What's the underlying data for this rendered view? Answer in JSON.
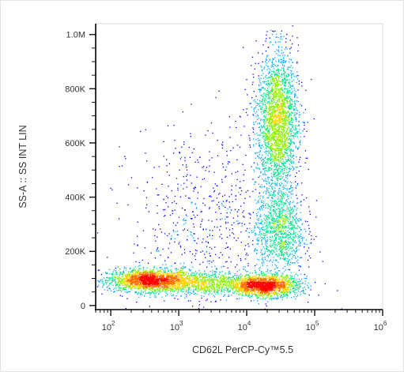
{
  "chart_data": {
    "type": "scatter",
    "style": "flow-cytometry density dot plot",
    "xlabel": "CD62L PerCP-Cy™5.5",
    "ylabel": "SS-A :: SS INT LIN",
    "x_scale": "log",
    "y_scale": "linear",
    "xlim": [
      60,
      1000000
    ],
    "ylim": [
      -15000,
      1040000
    ],
    "x_ticks": [
      {
        "value": 100,
        "base": "10",
        "exp": "2"
      },
      {
        "value": 1000,
        "base": "10",
        "exp": "3"
      },
      {
        "value": 10000,
        "base": "10",
        "exp": "4"
      },
      {
        "value": 100000,
        "base": "10",
        "exp": "5"
      },
      {
        "value": 1000000,
        "base": "10",
        "exp": "6"
      }
    ],
    "y_ticks": [
      {
        "value": 0,
        "label": "0"
      },
      {
        "value": 200000,
        "label": "200K"
      },
      {
        "value": 400000,
        "label": "400K"
      },
      {
        "value": 600000,
        "label": "600K"
      },
      {
        "value": 800000,
        "label": "800K"
      },
      {
        "value": 1000000,
        "label": "1.0M"
      }
    ],
    "grid": false,
    "legend": "none",
    "populations": [
      {
        "center_x": 350,
        "center_y": 95000,
        "spread_log10_x": 0.3,
        "spread_y": 20000,
        "weight": 0.2
      },
      {
        "center_x": 1800,
        "center_y": 85000,
        "spread_log10_x": 0.45,
        "spread_y": 22000,
        "weight": 0.13
      },
      {
        "center_x": 18000,
        "center_y": 75000,
        "spread_log10_x": 0.25,
        "spread_y": 20000,
        "weight": 0.2
      },
      {
        "center_x": 28000,
        "center_y": 680000,
        "spread_log10_x": 0.15,
        "spread_y": 130000,
        "weight": 0.27
      },
      {
        "center_x": 30000,
        "center_y": 280000,
        "spread_log10_x": 0.18,
        "spread_y": 80000,
        "weight": 0.12
      },
      {
        "center_x": 3000,
        "center_y": 300000,
        "spread_log10_x": 0.6,
        "spread_y": 180000,
        "weight": 0.08
      }
    ],
    "density_colors": [
      "#0000ff",
      "#00a8ff",
      "#00e68a",
      "#8cf000",
      "#ffd200",
      "#ff6a00",
      "#ff0000"
    ]
  }
}
